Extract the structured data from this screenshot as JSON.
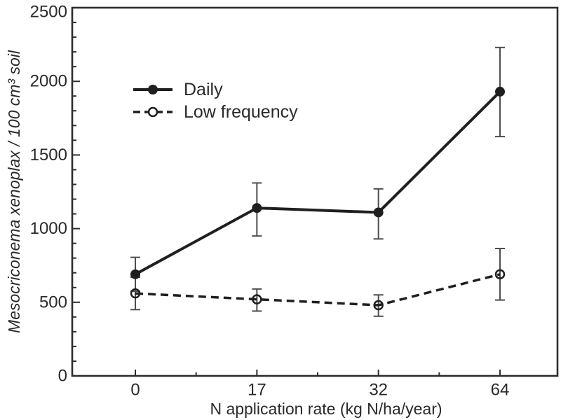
{
  "figure": {
    "background": "#ffffff",
    "text_color": "#2a2a2a",
    "axis_color": "#2d2d2d",
    "error_bar_color": "#4d4d4d",
    "series_color": "#1f1f1f"
  },
  "chart_data": {
    "type": "line",
    "title": "",
    "xlabel": "N application rate (kg N/ha/year)",
    "ylabel": "Mesocriconema xenoplax / 100 cm³ soil",
    "categories": [
      0,
      17,
      32,
      64
    ],
    "x_tick_labels": [
      "0",
      "17",
      "32",
      "64"
    ],
    "y_ticks": [
      0,
      500,
      1000,
      1500,
      2000,
      2500
    ],
    "ylim": [
      0,
      2500
    ],
    "y_minor_step": 100,
    "grid": false,
    "legend_position": "upper-left-inside",
    "error_bars": true,
    "series": [
      {
        "name": "Daily",
        "line_style": "solid",
        "marker": "filled-circle",
        "values": [
          690,
          1140,
          1110,
          1930
        ],
        "error_low": [
          575,
          950,
          930,
          1625
        ],
        "error_high": [
          805,
          1310,
          1270,
          2230
        ]
      },
      {
        "name": "Low frequency",
        "line_style": "dashed",
        "marker": "open-circle",
        "values": [
          560,
          520,
          480,
          690
        ],
        "error_low": [
          450,
          440,
          405,
          515
        ],
        "error_high": [
          670,
          590,
          550,
          865
        ]
      }
    ]
  }
}
